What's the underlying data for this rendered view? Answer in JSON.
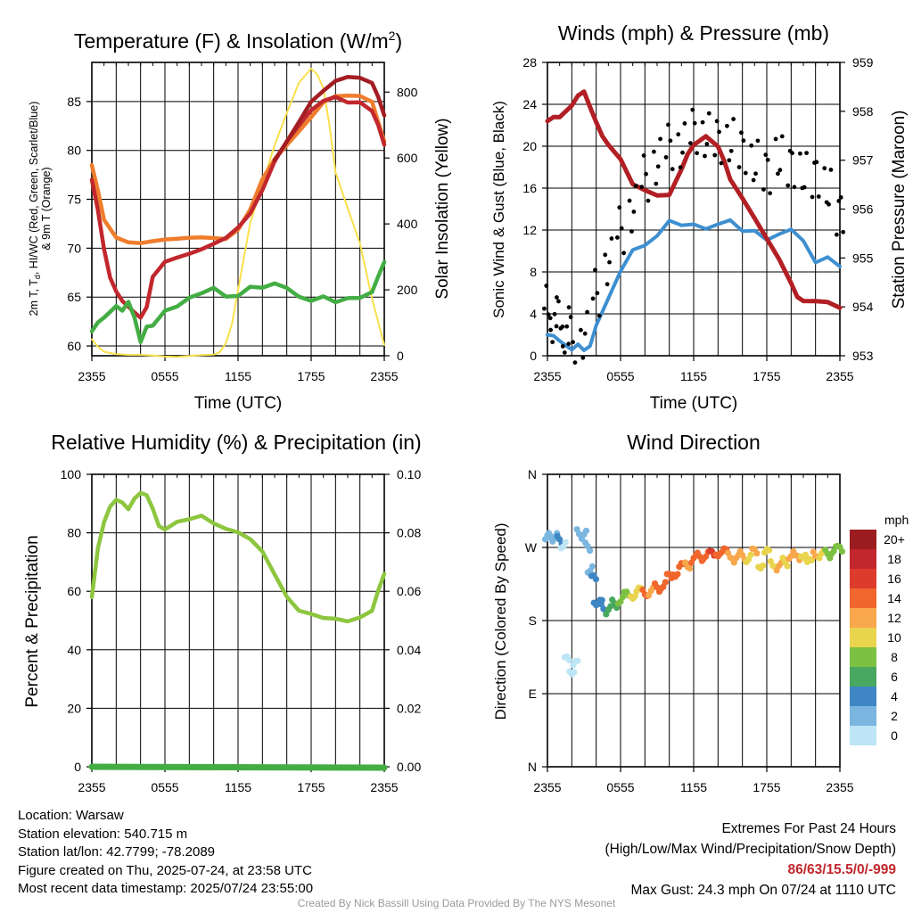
{
  "chart_data": [
    {
      "type": "line",
      "title": "Temperature (F) & Insolation (W/m²)",
      "title_main": "Temperature (F) & Insolation (W/m",
      "title_sup": "2",
      "title_end": ")",
      "xlabel": "Time (UTC)",
      "ylabel_left_line1": "2m T, T",
      "ylabel_left_sub": "d",
      "ylabel_left_line1_end": ", HI/WC (Red, Green, Scarlet/Blue)",
      "ylabel_left_line2": "& 9m T (Orange)",
      "ylabel_right": "Solar Insolation (Yellow)",
      "x_ticks": [
        "2355",
        "0555",
        "1155",
        "1755",
        "2355"
      ],
      "hours": [
        0,
        6,
        12,
        18,
        24
      ],
      "ylim": [
        59,
        89
      ],
      "y_ticks": [
        60,
        65,
        70,
        75,
        80,
        85
      ],
      "y2lim": [
        0,
        890
      ],
      "y2_ticks": [
        0,
        200,
        400,
        600,
        800
      ],
      "series": [
        {
          "color": "#f9e04b",
          "axis": "right",
          "x": [
            0,
            0.5,
            1,
            2,
            3,
            4,
            5,
            6,
            7,
            8,
            9,
            10,
            10.5,
            11,
            11.5,
            12,
            12.5,
            13,
            14,
            15,
            16,
            17,
            18,
            18.5,
            19,
            19.5,
            20,
            21,
            22,
            23,
            24
          ],
          "values": [
            50,
            30,
            15,
            5,
            0,
            0,
            0,
            0,
            0,
            0,
            0,
            0,
            10,
            40,
            100,
            200,
            300,
            400,
            520,
            640,
            740,
            830,
            870,
            850,
            810,
            700,
            560,
            450,
            340,
            170,
            30
          ]
        },
        {
          "color": "#ef7d2d",
          "axis": "left",
          "x": [
            0,
            0.5,
            1,
            1.5,
            2,
            3,
            4,
            5,
            6,
            7,
            8,
            9,
            10,
            11,
            12,
            13,
            14,
            15,
            16,
            17,
            18,
            19,
            20,
            21,
            22,
            23,
            23.5,
            24
          ],
          "values": [
            78.5,
            76,
            73,
            72,
            71,
            70.5,
            70.5,
            70.8,
            71,
            71,
            71,
            71,
            71,
            71,
            72,
            74,
            77,
            79,
            80.5,
            82,
            83.5,
            85,
            85.5,
            85.5,
            85.5,
            85,
            83,
            81
          ]
        },
        {
          "color": "#c1272d",
          "axis": "left",
          "x": [
            0,
            0.5,
            1,
            1.5,
            2,
            2.5,
            3,
            3.5,
            4,
            4.5,
            5,
            6,
            7,
            8,
            9,
            10,
            11,
            12,
            13,
            14,
            15,
            16,
            17,
            18,
            19,
            20,
            21,
            22,
            23,
            23.5,
            24
          ],
          "values": [
            77,
            74,
            70,
            67,
            65.5,
            64.5,
            64,
            63.5,
            63,
            64,
            67,
            68.5,
            69,
            69.5,
            70,
            70.5,
            71,
            72,
            73.5,
            76,
            79,
            81,
            82.5,
            84,
            85,
            85.5,
            85,
            85,
            84,
            82.5,
            80.5
          ]
        },
        {
          "color": "#a31d23",
          "axis": "left",
          "x": [
            15,
            16,
            17,
            18,
            19,
            20,
            21,
            22,
            23,
            23.5,
            24
          ],
          "values": [
            79,
            81,
            83,
            85,
            86,
            87,
            87.5,
            87.5,
            87,
            85.5,
            83.5
          ]
        },
        {
          "color": "#43ad44",
          "axis": "left",
          "x": [
            0,
            0.5,
            1,
            1.5,
            2,
            2.5,
            3,
            3.5,
            4,
            4.5,
            5,
            6,
            7,
            8,
            9,
            10,
            11,
            12,
            13,
            14,
            15,
            16,
            17,
            18,
            19,
            20,
            21,
            22,
            23,
            23.5,
            24
          ],
          "values": [
            61.5,
            62.5,
            63,
            63.5,
            64,
            63.5,
            64.5,
            63,
            60.5,
            62,
            62,
            63.5,
            64,
            65,
            65.5,
            66,
            65,
            65,
            66,
            66,
            66.5,
            66,
            65,
            64.5,
            65,
            64.5,
            65,
            65,
            65.5,
            67,
            68.5
          ]
        }
      ]
    },
    {
      "type": "line",
      "title": "Winds (mph) & Pressure (mb)",
      "xlabel": "Time (UTC)",
      "ylabel": "Sonic Wind & Gust (Blue, Black)",
      "ylabel_right": "Station Pressure (Maroon)",
      "x_ticks": [
        "2355",
        "0555",
        "1155",
        "1755",
        "2355"
      ],
      "hours": [
        0,
        6,
        12,
        18,
        24
      ],
      "ylim": [
        0,
        28
      ],
      "y_ticks": [
        0,
        4,
        8,
        12,
        16,
        20,
        24,
        28
      ],
      "y2lim": [
        953,
        959
      ],
      "y2_ticks": [
        953,
        954,
        955,
        956,
        957,
        958,
        959
      ],
      "series": [
        {
          "color": "#3e8fd0",
          "axis": "left",
          "x": [
            0,
            0.5,
            1,
            1.5,
            2,
            2.5,
            3,
            3.5,
            4,
            5,
            6,
            7,
            8,
            9,
            10,
            11,
            12,
            13,
            14,
            15,
            16,
            17,
            18,
            19,
            20,
            21,
            22,
            23,
            24
          ],
          "values": [
            2,
            2,
            1.5,
            1,
            0.5,
            1,
            0.5,
            1,
            3,
            5.5,
            8,
            10,
            10.5,
            11.5,
            13,
            12.5,
            12.5,
            12,
            12.5,
            13,
            12,
            12,
            11,
            11.5,
            12,
            11,
            9,
            9.5,
            8.5
          ]
        },
        {
          "color": "#b21f24",
          "axis": "right",
          "x": [
            0,
            0.5,
            1,
            1.5,
            2,
            2.5,
            3,
            3.5,
            4,
            4.5,
            5,
            6,
            7,
            8,
            9,
            10,
            11,
            11.5,
            12,
            13,
            14,
            14.5,
            15,
            16,
            17,
            18,
            19,
            20,
            20.5,
            21,
            22,
            23,
            24
          ],
          "values": [
            957.8,
            957.9,
            957.9,
            958,
            958.1,
            958.3,
            958.4,
            958.1,
            957.8,
            957.5,
            957.3,
            957,
            956.5,
            956.4,
            956.3,
            956.3,
            956.8,
            957.1,
            957.3,
            957.5,
            957.3,
            957,
            956.6,
            956.2,
            955.8,
            955.4,
            955,
            954.5,
            954.2,
            954.1,
            954.1,
            954.1,
            954
          ]
        }
      ],
      "gust_x": [
        0,
        0.5,
        1,
        1.5,
        2,
        3,
        4,
        5,
        6,
        7,
        8,
        9,
        10,
        11,
        12,
        13,
        14,
        15,
        16,
        17,
        18,
        19,
        20,
        21,
        22,
        23,
        24
      ],
      "gust_values": [
        4.5,
        3.5,
        3,
        2.5,
        1.5,
        2,
        6,
        9,
        12,
        14,
        17,
        18.5,
        20,
        20,
        21.5,
        21,
        20.5,
        20.5,
        19.5,
        18.5,
        17.5,
        19,
        18,
        17.5,
        17,
        16,
        13.5
      ]
    },
    {
      "type": "line",
      "title": "Relative Humidity (%) & Precipitation (in)",
      "ylabel": "Percent & Precipitation",
      "x_ticks": [
        "2355",
        "0555",
        "1155",
        "1755",
        "2355"
      ],
      "hours": [
        0,
        6,
        12,
        18,
        24
      ],
      "ylim": [
        0,
        100
      ],
      "y_ticks": [
        0,
        20,
        40,
        60,
        80,
        100
      ],
      "y2lim": [
        0,
        0.1
      ],
      "y2_ticks": [
        "0.00",
        "0.02",
        "0.04",
        "0.06",
        "0.08",
        "0.10"
      ],
      "series": [
        {
          "color": "#8dc63f",
          "axis": "left",
          "x": [
            0,
            0.5,
            1,
            1.5,
            2,
            2.5,
            3,
            3.5,
            4,
            4.5,
            5,
            5.5,
            6,
            7,
            8,
            9,
            10,
            11,
            12,
            13,
            14,
            15,
            16,
            17,
            18,
            19,
            20,
            21,
            22,
            23,
            23.5,
            24
          ],
          "values": [
            58,
            75,
            84,
            89,
            91,
            90,
            88,
            92,
            94,
            93,
            88,
            82,
            81,
            84,
            85,
            86,
            83,
            81,
            80,
            78,
            74,
            66,
            58,
            53,
            52,
            51,
            51,
            50,
            51,
            53,
            60,
            66
          ]
        },
        {
          "color": "#43ad44",
          "axis": "right",
          "x": [
            0,
            24
          ],
          "values": [
            0,
            0
          ]
        }
      ]
    },
    {
      "type": "scatter",
      "title": "Wind Direction",
      "ylabel": "Direction (Colored By Speed)",
      "x_ticks": [
        "2355",
        "0555",
        "1155",
        "1755",
        "2355"
      ],
      "hours": [
        0,
        6,
        12,
        18,
        24
      ],
      "ylim": [
        0,
        360
      ],
      "y_ticks": [
        "N",
        "E",
        "S",
        "W",
        "N"
      ],
      "legend": {
        "title": "mph",
        "labels": [
          "20+",
          "18",
          "16",
          "14",
          "12",
          "10",
          "8",
          "6",
          "4",
          "2",
          "0"
        ],
        "colors": [
          "#9b1d20",
          "#c1272d",
          "#dd3c2d",
          "#f0662c",
          "#f9a74c",
          "#e9d44e",
          "#7cc142",
          "#48a85f",
          "#3f86c4",
          "#7ab6df",
          "#bde5f5"
        ]
      },
      "points_x": [
        0,
        0.3,
        0.6,
        1,
        1.3,
        1.6,
        2,
        2.3,
        2.6,
        3,
        3.3,
        3.5,
        3.8,
        4,
        4.3,
        4.6,
        5,
        5.5,
        6,
        6.5,
        7,
        7.5,
        8,
        8.5,
        9,
        9.5,
        10,
        10.5,
        11,
        11.5,
        12,
        12.5,
        13,
        13.5,
        14,
        14.5,
        15,
        15.5,
        16,
        16.5,
        17,
        17.5,
        18,
        18.5,
        19,
        19.5,
        20,
        20.5,
        21,
        21.5,
        22,
        22.5,
        23,
        23.5,
        24
      ],
      "points_y": [
        280,
        285,
        282,
        278,
        275,
        130,
        120,
        125,
        290,
        285,
        270,
        245,
        230,
        205,
        200,
        198,
        192,
        200,
        207,
        210,
        213,
        215,
        216,
        215,
        220,
        225,
        232,
        240,
        245,
        250,
        255,
        258,
        262,
        260,
        265,
        263,
        262,
        255,
        260,
        258,
        263,
        250,
        262,
        252,
        245,
        252,
        262,
        255,
        263,
        250,
        264,
        260,
        262,
        268,
        266
      ],
      "points_speed": [
        3,
        2,
        3,
        4,
        1,
        1,
        1,
        1,
        2,
        2,
        2,
        3,
        4,
        5,
        4,
        4,
        6,
        7,
        8,
        9,
        10,
        11,
        14,
        13,
        14,
        14,
        15,
        14,
        14,
        13,
        15,
        15,
        14,
        16,
        15,
        14,
        12,
        13,
        12,
        11,
        12,
        10,
        11,
        11,
        13,
        10,
        12,
        12,
        11,
        10,
        12,
        11,
        8,
        8,
        9
      ]
    }
  ],
  "footer": {
    "location": "Location: Warsaw",
    "elevation": "Station elevation: 540.715 m",
    "latlon": "Station lat/lon: 42.7799; -78.2089",
    "created": "Figure created on Thu, 2025-07-24, at 23:58 UTC",
    "recent": "Most recent data timestamp: 2025/07/24 23:55:00",
    "extremes_title": "Extremes For Past 24 Hours",
    "extremes_legend": "(High/Low/Max Wind/Precipitation/Snow Depth)",
    "extremes_values": "86/63/15.5/0/-999",
    "max_gust": "Max Gust: 24.3 mph On 07/24 at 1110 UTC",
    "credit": "Created By Nick Bassill Using Data Provided By The NYS Mesonet"
  }
}
